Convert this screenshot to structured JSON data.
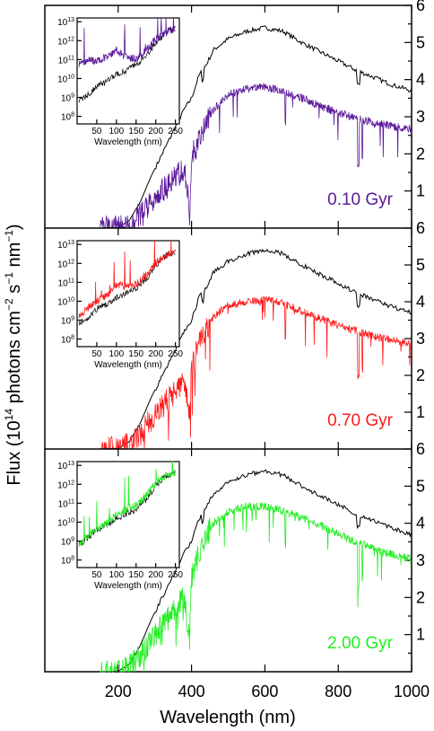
{
  "chart_data": {
    "type": "line",
    "xlabel": "Wavelength (nm)",
    "ylabel": "Flux (10^14 photons cm^-2 s^-1 nm^-1)",
    "ylabel_parts": {
      "p1": "Flux (10",
      "p1_sup": "14",
      "p2": " photons cm",
      "p2_sup": "−2",
      "p3": " s",
      "p3_sup": "−1",
      "p4": " nm",
      "p4_sup": "−1",
      "p5": ")"
    },
    "xlim": [
      0,
      1000
    ],
    "ylim": [
      0,
      6
    ],
    "x_ticks": [
      200,
      400,
      600,
      800,
      1000
    ],
    "x_tick_labels": [
      "200",
      "400",
      "600",
      "800",
      "1000"
    ],
    "y_ticks": [
      1,
      2,
      3,
      4,
      5,
      6
    ],
    "y_tick_labels": [
      "1",
      "2",
      "3",
      "4",
      "5",
      "6"
    ],
    "reference_series": {
      "color": "#000000",
      "x": [
        150,
        200,
        230,
        260,
        290,
        320,
        350,
        380,
        400,
        420,
        440,
        460,
        500,
        550,
        600,
        650,
        700,
        750,
        800,
        850,
        900,
        950,
        1000
      ],
      "y": [
        0.0,
        0.02,
        0.2,
        0.7,
        1.4,
        2.0,
        2.6,
        3.2,
        3.5,
        4.1,
        4.4,
        4.8,
        5.1,
        5.3,
        5.4,
        5.3,
        5.0,
        4.75,
        4.5,
        4.25,
        4.05,
        3.85,
        3.7
      ]
    },
    "panels": [
      {
        "label": "0.10 Gyr",
        "color": "#5a189a",
        "x": [
          150,
          200,
          230,
          260,
          290,
          320,
          350,
          380,
          395,
          400,
          420,
          440,
          460,
          500,
          550,
          600,
          650,
          700,
          750,
          800,
          850,
          900,
          950,
          1000
        ],
        "y": [
          0.0,
          0.0,
          0.1,
          0.35,
          0.7,
          1.0,
          1.3,
          1.6,
          0.5,
          1.9,
          2.4,
          2.8,
          3.2,
          3.6,
          3.75,
          3.8,
          3.7,
          3.5,
          3.3,
          3.1,
          2.95,
          2.85,
          2.75,
          2.65
        ],
        "inset": {
          "x": [
            10,
            30,
            50,
            80,
            100,
            120,
            150,
            180,
            200,
            230,
            250
          ],
          "y_log": [
            10.8,
            11.0,
            10.9,
            11.2,
            11.5,
            11.2,
            11.0,
            11.6,
            12.1,
            12.5,
            12.6
          ],
          "ref_y_log": [
            8.9,
            9.2,
            9.6,
            9.9,
            10.2,
            10.4,
            10.7,
            11.3,
            11.9,
            12.5,
            12.6
          ]
        }
      },
      {
        "label": "0.70 Gyr",
        "color": "#ff1a1a",
        "x": [
          150,
          200,
          230,
          260,
          290,
          320,
          350,
          380,
          395,
          400,
          420,
          440,
          460,
          500,
          550,
          600,
          650,
          700,
          750,
          800,
          850,
          900,
          950,
          1000
        ],
        "y": [
          0.0,
          0.0,
          0.12,
          0.4,
          0.8,
          1.15,
          1.5,
          1.9,
          0.8,
          2.2,
          2.8,
          3.3,
          3.6,
          3.9,
          4.0,
          4.05,
          3.95,
          3.75,
          3.55,
          3.35,
          3.2,
          3.05,
          2.95,
          2.85
        ],
        "inset": {
          "x": [
            10,
            30,
            50,
            80,
            100,
            120,
            150,
            180,
            200,
            230,
            250
          ],
          "y_log": [
            9.3,
            9.7,
            10.0,
            10.4,
            10.9,
            10.8,
            10.9,
            11.4,
            12.0,
            12.5,
            12.6
          ],
          "ref_y_log": [
            8.9,
            9.2,
            9.6,
            9.9,
            10.2,
            10.4,
            10.7,
            11.3,
            11.9,
            12.5,
            12.6
          ]
        }
      },
      {
        "label": "2.00 Gyr",
        "color": "#22ee22",
        "x": [
          150,
          200,
          230,
          260,
          290,
          320,
          350,
          380,
          395,
          400,
          420,
          440,
          460,
          500,
          550,
          600,
          650,
          700,
          750,
          800,
          850,
          900,
          950,
          1000
        ],
        "y": [
          0.0,
          0.0,
          0.12,
          0.45,
          0.85,
          1.25,
          1.6,
          2.0,
          0.9,
          2.5,
          3.2,
          3.7,
          4.0,
          4.3,
          4.45,
          4.45,
          4.35,
          4.15,
          3.95,
          3.7,
          3.5,
          3.3,
          3.15,
          3.05
        ],
        "inset": {
          "x": [
            10,
            30,
            50,
            80,
            100,
            120,
            150,
            180,
            200,
            230,
            250
          ],
          "y_log": [
            8.9,
            9.3,
            9.6,
            10.0,
            10.4,
            10.6,
            10.9,
            11.5,
            12.1,
            12.5,
            12.6
          ],
          "ref_y_log": [
            8.9,
            9.2,
            9.6,
            9.9,
            10.2,
            10.4,
            10.7,
            11.3,
            11.9,
            12.5,
            12.6
          ]
        }
      }
    ],
    "inset_axes": {
      "xlabel": "Wavelength (nm)",
      "xlim": [
        0,
        260
      ],
      "x_ticks": [
        50,
        100,
        150,
        200,
        250
      ],
      "x_tick_labels": [
        "50",
        "100",
        "150",
        "200",
        "250"
      ],
      "ylim_log": [
        7.6,
        13.2
      ],
      "y_ticks_log": [
        8,
        9,
        10,
        11,
        12,
        13
      ],
      "y_tick_base": "10",
      "y_tick_exponents": [
        "8",
        "9",
        "10",
        "11",
        "12",
        "13"
      ]
    }
  }
}
